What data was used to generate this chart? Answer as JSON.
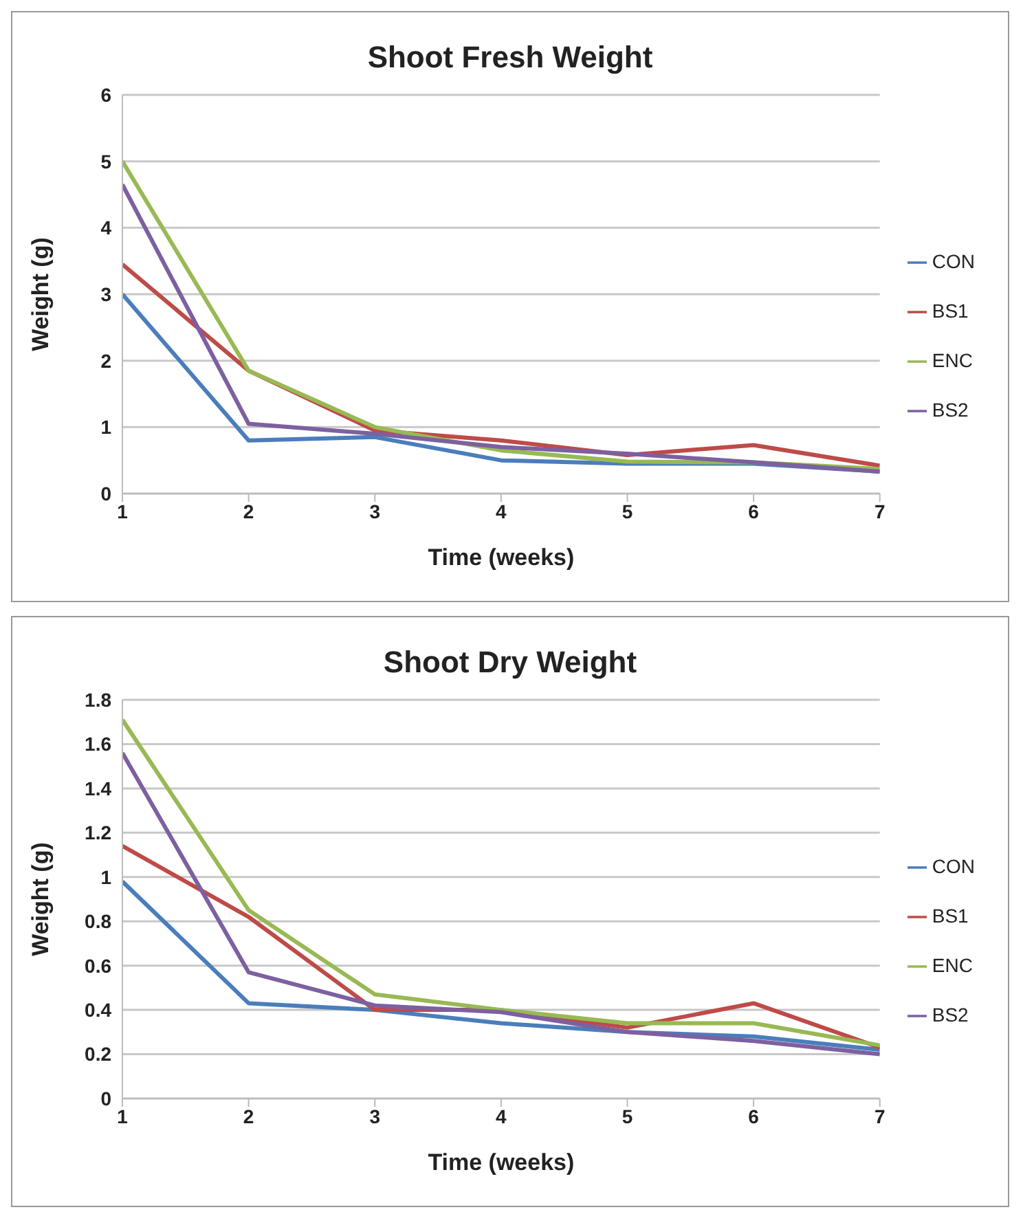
{
  "chart_data": [
    {
      "type": "line",
      "title": "Shoot Fresh Weight",
      "xlabel": "Time (weeks)",
      "ylabel": "Weight (g)",
      "x": [
        1,
        2,
        3,
        4,
        5,
        6,
        7
      ],
      "xlim": [
        1,
        7
      ],
      "xticks": [
        1,
        2,
        3,
        4,
        5,
        6,
        7
      ],
      "ylim": [
        0,
        6
      ],
      "yticks": [
        0,
        1,
        2,
        3,
        4,
        5,
        6
      ],
      "grid": "y",
      "legend": "right",
      "marker": "none",
      "series": [
        {
          "name": "CON",
          "color": "#4a7ebb",
          "values": [
            3.0,
            0.8,
            0.85,
            0.5,
            0.45,
            0.45,
            0.33
          ]
        },
        {
          "name": "BS1",
          "color": "#be4b48",
          "values": [
            3.45,
            1.85,
            0.95,
            0.8,
            0.58,
            0.73,
            0.42
          ]
        },
        {
          "name": "ENC",
          "color": "#98b954",
          "values": [
            5.0,
            1.85,
            1.0,
            0.65,
            0.48,
            0.47,
            0.37
          ]
        },
        {
          "name": "BS2",
          "color": "#7d60a0",
          "values": [
            4.65,
            1.05,
            0.9,
            0.7,
            0.6,
            0.47,
            0.33
          ]
        }
      ]
    },
    {
      "type": "line",
      "title": "Shoot Dry Weight",
      "xlabel": "Time (weeks)",
      "ylabel": "Weight (g)",
      "x": [
        1,
        2,
        3,
        4,
        5,
        6,
        7
      ],
      "xlim": [
        1,
        7
      ],
      "xticks": [
        1,
        2,
        3,
        4,
        5,
        6,
        7
      ],
      "ylim": [
        0,
        1.8
      ],
      "yticks": [
        0,
        0.2,
        0.4,
        0.6,
        0.8,
        1,
        1.2,
        1.4,
        1.6,
        1.8
      ],
      "grid": "y",
      "legend": "right",
      "marker": "none",
      "series": [
        {
          "name": "CON",
          "color": "#4a7ebb",
          "values": [
            0.98,
            0.43,
            0.4,
            0.34,
            0.3,
            0.28,
            0.22
          ]
        },
        {
          "name": "BS1",
          "color": "#be4b48",
          "values": [
            1.14,
            0.82,
            0.4,
            0.4,
            0.32,
            0.43,
            0.23
          ]
        },
        {
          "name": "ENC",
          "color": "#98b954",
          "values": [
            1.71,
            0.85,
            0.47,
            0.4,
            0.34,
            0.34,
            0.24
          ]
        },
        {
          "name": "BS2",
          "color": "#7d60a0",
          "values": [
            1.56,
            0.57,
            0.42,
            0.39,
            0.3,
            0.26,
            0.2
          ]
        }
      ]
    }
  ]
}
